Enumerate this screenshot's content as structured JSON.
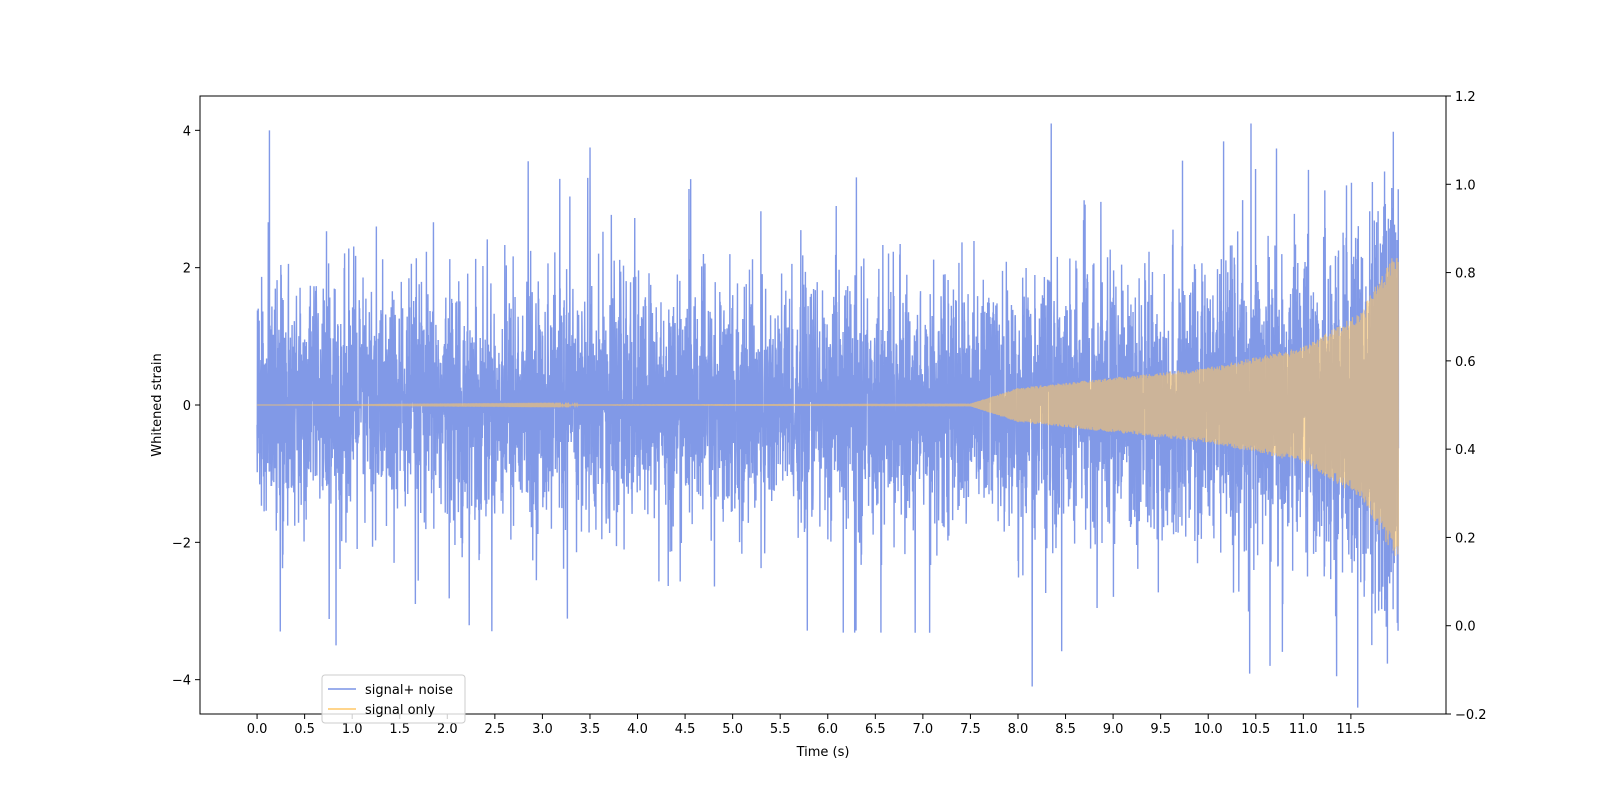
{
  "chart_data": {
    "type": "line",
    "title": "",
    "xlabel": "Time (s)",
    "ylabel": "Whitened strain",
    "y2label": "",
    "xlim": [
      -0.6,
      12.5
    ],
    "ylim": [
      -4.5,
      4.5
    ],
    "y2lim": [
      -0.2,
      1.2
    ],
    "x_ticks": [
      "0.0",
      "0.5",
      "1.0",
      "1.5",
      "2.0",
      "2.5",
      "3.0",
      "3.5",
      "4.0",
      "4.5",
      "5.0",
      "5.5",
      "6.0",
      "6.5",
      "7.0",
      "7.5",
      "8.0",
      "8.5",
      "9.0",
      "9.5",
      "10.0",
      "10.5",
      "11.0",
      "11.5"
    ],
    "y_ticks": [
      "−4",
      "−2",
      "0",
      "2",
      "4"
    ],
    "y2_ticks": [
      "−0.2",
      "0.0",
      "0.2",
      "0.4",
      "0.6",
      "0.8",
      "1.0",
      "1.2"
    ],
    "grid": false,
    "legend_position": "lower-left",
    "series": [
      {
        "name": "signal+ noise",
        "color": "#7a93e6",
        "description_values": {
          "x_range": [
            0.0,
            12.0
          ],
          "core_band": [
            -1.9,
            1.9
          ],
          "peak_spikes": [
            {
              "x": 0.13,
              "y": 4.0
            },
            {
              "x": 0.83,
              "y": -3.5
            },
            {
              "x": 2.85,
              "y": 3.55
            },
            {
              "x": 3.5,
              "y": 3.75
            },
            {
              "x": 8.15,
              "y": -4.1
            },
            {
              "x": 8.35,
              "y": 4.1
            },
            {
              "x": 10.45,
              "y": 4.1
            },
            {
              "x": 10.65,
              "y": -3.8
            },
            {
              "x": 11.35,
              "y": -3.95
            }
          ]
        }
      },
      {
        "name": "signal only",
        "color": "#ffc766",
        "description_values": {
          "x_range": [
            0.0,
            12.0
          ],
          "chirp_envelope": [
            {
              "x": 0.0,
              "amp": 0.0
            },
            {
              "x": 7.5,
              "amp": 0.02
            },
            {
              "x": 8.0,
              "amp": 0.25
            },
            {
              "x": 9.0,
              "amp": 0.4
            },
            {
              "x": 10.0,
              "amp": 0.55
            },
            {
              "x": 11.0,
              "amp": 0.85
            },
            {
              "x": 11.6,
              "amp": 1.35
            },
            {
              "x": 11.95,
              "amp": 2.2
            }
          ]
        }
      }
    ]
  }
}
